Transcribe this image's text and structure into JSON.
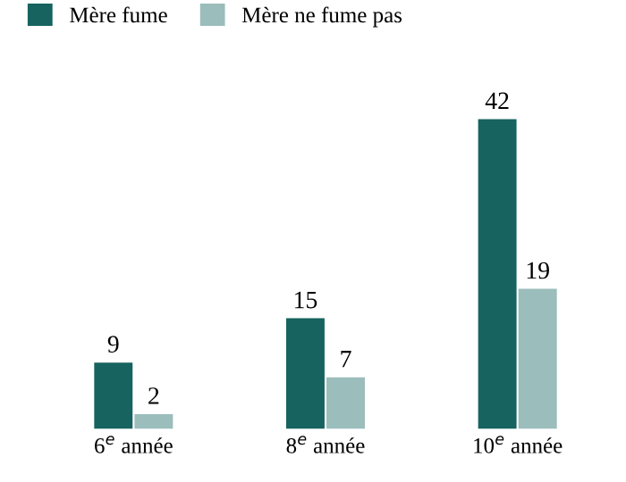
{
  "chart_data": {
    "type": "bar",
    "categories": [
      "6$^{e}$ année",
      "8$^{e}$ année",
      "10$^{e}$ année"
    ],
    "series": [
      {
        "name": "Mère fume",
        "color": "#17635f",
        "values": [
          9,
          15,
          42
        ]
      },
      {
        "name": "Mère ne fume pas",
        "color": "#9bbdbb",
        "values": [
          2,
          7,
          19
        ]
      }
    ],
    "data_labels": true,
    "legend": "top left",
    "grid": false,
    "tick_labels": "x"
  }
}
